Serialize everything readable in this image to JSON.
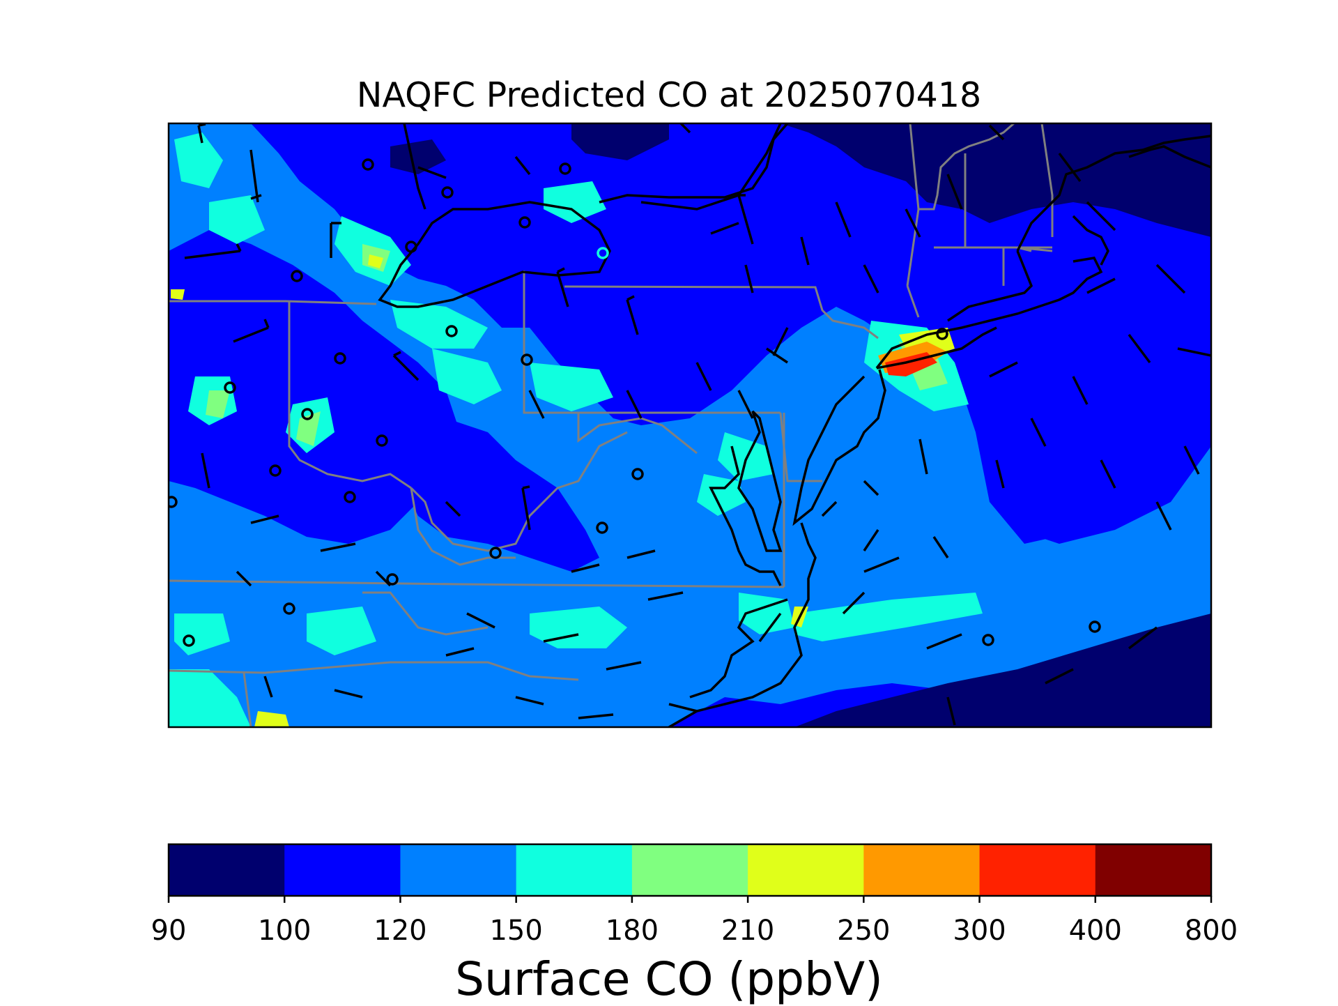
{
  "title": "NAQFC Predicted CO at 2025070418",
  "colorbar": {
    "label": "Surface CO (ppbV)",
    "ticks": [
      "90",
      "100",
      "120",
      "150",
      "180",
      "210",
      "250",
      "300",
      "400",
      "800"
    ],
    "colors": [
      "#00006e",
      "#0000ff",
      "#0080ff",
      "#10ffdf",
      "#80ff80",
      "#e0ff1a",
      "#ff9900",
      "#ff2200",
      "#800000"
    ]
  },
  "map": {
    "field": "Surface CO",
    "unit": "ppbV",
    "region": "Mid-Atlantic / Northeast US",
    "background_level": "120-150",
    "hotspot": "New York City area (300-400)"
  }
}
